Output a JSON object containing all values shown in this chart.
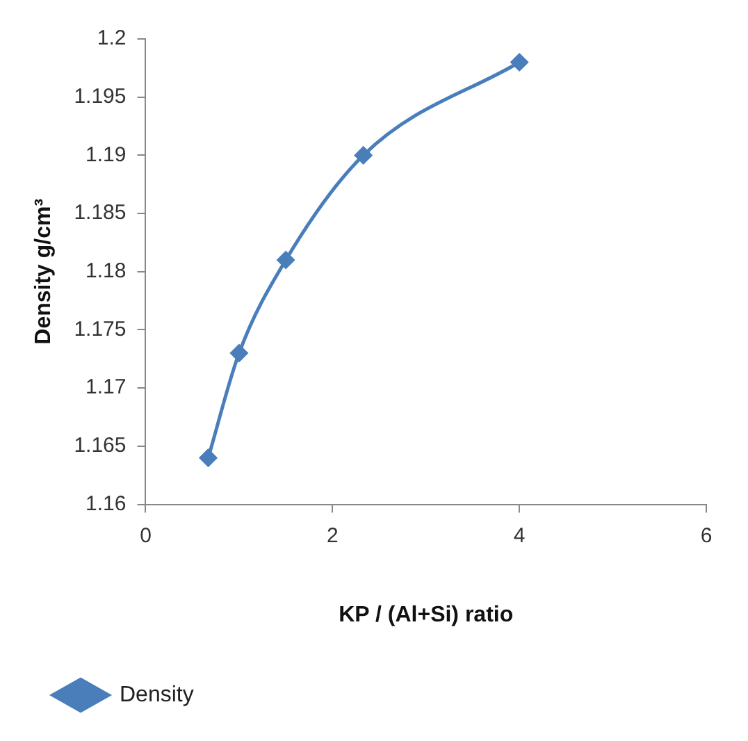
{
  "chart_data": {
    "type": "line",
    "xlabel": "KP / (Al+Si) ratio",
    "ylabel": "Density g/cm³",
    "series": [
      {
        "name": "Density",
        "color": "#4a7ebb",
        "x": [
          0.67,
          1,
          1.5,
          2.33,
          4
        ],
        "values": [
          1.164,
          1.173,
          1.181,
          1.19,
          1.198
        ]
      }
    ],
    "xlim": [
      0,
      6
    ],
    "xticks": [
      0,
      2,
      4,
      6
    ],
    "ylim": [
      1.16,
      1.2
    ],
    "yticks": [
      1.16,
      1.165,
      1.17,
      1.175,
      1.18,
      1.185,
      1.19,
      1.195,
      1.2
    ],
    "marker": "diamond",
    "legend": "bottom"
  }
}
